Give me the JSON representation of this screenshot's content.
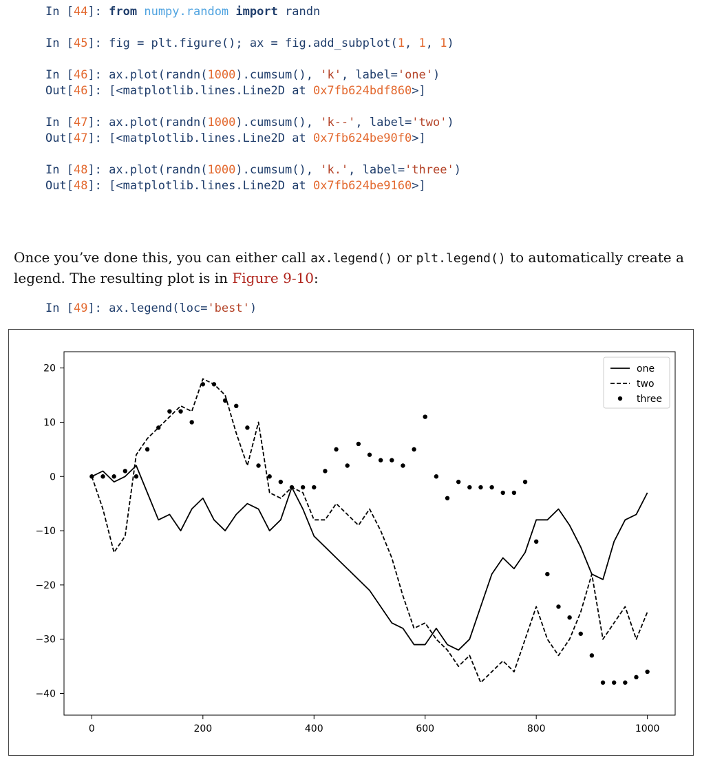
{
  "code_top": [
    {
      "parts": [
        [
          "prompt",
          "In ["
        ],
        [
          "num",
          "44"
        ],
        [
          "prompt",
          "]: "
        ],
        [
          "kw",
          "from "
        ],
        [
          "mod",
          "numpy.random "
        ],
        [
          "kw",
          "import "
        ],
        [
          "prompt",
          "randn"
        ]
      ]
    },
    {
      "parts": []
    },
    {
      "parts": [
        [
          "prompt",
          "In ["
        ],
        [
          "num",
          "45"
        ],
        [
          "prompt",
          "]: fig = plt.figure(); ax = fig.add_subplot("
        ],
        [
          "num",
          "1"
        ],
        [
          "prompt",
          ", "
        ],
        [
          "num",
          "1"
        ],
        [
          "prompt",
          ", "
        ],
        [
          "num",
          "1"
        ],
        [
          "prompt",
          ")"
        ]
      ]
    },
    {
      "parts": []
    },
    {
      "parts": [
        [
          "prompt",
          "In ["
        ],
        [
          "num",
          "46"
        ],
        [
          "prompt",
          "]: ax.plot(randn("
        ],
        [
          "num",
          "1000"
        ],
        [
          "prompt",
          ").cumsum(), "
        ],
        [
          "str",
          "'k'"
        ],
        [
          "prompt",
          ", label="
        ],
        [
          "str",
          "'one'"
        ],
        [
          "prompt",
          ")"
        ]
      ]
    },
    {
      "parts": [
        [
          "prompt",
          "Out["
        ],
        [
          "num",
          "46"
        ],
        [
          "prompt",
          "]: [<matplotlib.lines.Line2D at "
        ],
        [
          "num",
          "0x7fb624bdf860"
        ],
        [
          "prompt",
          ">]"
        ]
      ]
    },
    {
      "parts": []
    },
    {
      "parts": [
        [
          "prompt",
          "In ["
        ],
        [
          "num",
          "47"
        ],
        [
          "prompt",
          "]: ax.plot(randn("
        ],
        [
          "num",
          "1000"
        ],
        [
          "prompt",
          ").cumsum(), "
        ],
        [
          "str",
          "'k--'"
        ],
        [
          "prompt",
          ", label="
        ],
        [
          "str",
          "'two'"
        ],
        [
          "prompt",
          ")"
        ]
      ]
    },
    {
      "parts": [
        [
          "prompt",
          "Out["
        ],
        [
          "num",
          "47"
        ],
        [
          "prompt",
          "]: [<matplotlib.lines.Line2D at "
        ],
        [
          "num",
          "0x7fb624be90f0"
        ],
        [
          "prompt",
          ">]"
        ]
      ]
    },
    {
      "parts": []
    },
    {
      "parts": [
        [
          "prompt",
          "In ["
        ],
        [
          "num",
          "48"
        ],
        [
          "prompt",
          "]: ax.plot(randn("
        ],
        [
          "num",
          "1000"
        ],
        [
          "prompt",
          ").cumsum(), "
        ],
        [
          "str",
          "'k.'"
        ],
        [
          "prompt",
          ", label="
        ],
        [
          "str",
          "'three'"
        ],
        [
          "prompt",
          ")"
        ]
      ]
    },
    {
      "parts": [
        [
          "prompt",
          "Out["
        ],
        [
          "num",
          "48"
        ],
        [
          "prompt",
          "]: [<matplotlib.lines.Line2D at "
        ],
        [
          "num",
          "0x7fb624be9160"
        ],
        [
          "prompt",
          ">]"
        ]
      ]
    }
  ],
  "prose": {
    "t1": "Once you’ve done this, you can either call ",
    "c1": "ax.legend()",
    "t2": " or ",
    "c2": "plt.legend()",
    "t3": " to automat­ically create a legend. The resulting plot is in ",
    "ref": "Figure 9-10",
    "t4": ":"
  },
  "code_bottom": [
    {
      "parts": [
        [
          "prompt",
          "In ["
        ],
        [
          "num",
          "49"
        ],
        [
          "prompt",
          "]: ax.legend(loc="
        ],
        [
          "str",
          "'best'"
        ],
        [
          "prompt",
          ")"
        ]
      ]
    }
  ],
  "colors": {
    "code": "#1f3d6b",
    "number": "#e3692f",
    "string": "#b5452a",
    "module": "#4fa3e0",
    "figure_ref": "#b0241c"
  },
  "chart_data": {
    "type": "line",
    "title": "",
    "xlabel": "",
    "ylabel": "",
    "xlim": [
      -50,
      1050
    ],
    "ylim": [
      -44,
      23
    ],
    "xticks": [
      0,
      200,
      400,
      600,
      800,
      1000
    ],
    "yticks": [
      -40,
      -30,
      -20,
      -10,
      0,
      10,
      20
    ],
    "legend_position": "top-right",
    "grid": false,
    "series": [
      {
        "name": "one",
        "style": "solid",
        "x": [
          0,
          20,
          40,
          60,
          80,
          100,
          120,
          140,
          160,
          180,
          200,
          220,
          240,
          260,
          280,
          300,
          320,
          340,
          360,
          380,
          400,
          420,
          440,
          460,
          480,
          500,
          520,
          540,
          560,
          580,
          600,
          620,
          640,
          660,
          680,
          700,
          720,
          740,
          760,
          780,
          800,
          820,
          840,
          860,
          880,
          900,
          920,
          940,
          960,
          980,
          1000
        ],
        "y": [
          0,
          1,
          -1,
          0,
          2,
          -3,
          -8,
          -7,
          -10,
          -6,
          -4,
          -8,
          -10,
          -7,
          -5,
          -6,
          -10,
          -8,
          -2,
          -6,
          -11,
          -13,
          -15,
          -17,
          -19,
          -21,
          -24,
          -27,
          -28,
          -31,
          -31,
          -28,
          -31,
          -32,
          -30,
          -24,
          -18,
          -15,
          -17,
          -14,
          -8,
          -8,
          -6,
          -9,
          -13,
          -18,
          -19,
          -12,
          -8,
          -7,
          -3
        ]
      },
      {
        "name": "two",
        "style": "dashed",
        "x": [
          0,
          20,
          40,
          60,
          80,
          100,
          120,
          140,
          160,
          180,
          200,
          220,
          240,
          260,
          280,
          300,
          320,
          340,
          360,
          380,
          400,
          420,
          440,
          460,
          480,
          500,
          520,
          540,
          560,
          580,
          600,
          620,
          640,
          660,
          680,
          700,
          720,
          740,
          760,
          780,
          800,
          820,
          840,
          860,
          880,
          900,
          920,
          940,
          960,
          980,
          1000
        ],
        "y": [
          0,
          -6,
          -14,
          -11,
          4,
          7,
          9,
          11,
          13,
          12,
          18,
          17,
          15,
          8,
          2,
          10,
          -3,
          -4,
          -2,
          -3,
          -8,
          -8,
          -5,
          -7,
          -9,
          -6,
          -10,
          -15,
          -22,
          -28,
          -27,
          -30,
          -32,
          -35,
          -33,
          -38,
          -36,
          -34,
          -36,
          -30,
          -24,
          -30,
          -33,
          -30,
          -25,
          -18,
          -30,
          -27,
          -24,
          -30,
          -25
        ]
      },
      {
        "name": "three",
        "style": "dots",
        "x": [
          0,
          20,
          40,
          60,
          80,
          100,
          120,
          140,
          160,
          180,
          200,
          220,
          240,
          260,
          280,
          300,
          320,
          340,
          360,
          380,
          400,
          420,
          440,
          460,
          480,
          500,
          520,
          540,
          560,
          580,
          600,
          620,
          640,
          660,
          680,
          700,
          720,
          740,
          760,
          780,
          800,
          820,
          840,
          860,
          880,
          900,
          920,
          940,
          960,
          980,
          1000
        ],
        "y": [
          0,
          0,
          0,
          1,
          0,
          5,
          9,
          12,
          12,
          10,
          17,
          17,
          14,
          13,
          9,
          2,
          0,
          -1,
          -2,
          -2,
          -2,
          1,
          5,
          2,
          6,
          4,
          3,
          3,
          2,
          5,
          11,
          0,
          -4,
          -1,
          -2,
          -2,
          -2,
          -3,
          -3,
          -1,
          -12,
          -18,
          -24,
          -26,
          -29,
          -33,
          -38,
          -38,
          -38,
          -37,
          -36
        ]
      }
    ]
  }
}
